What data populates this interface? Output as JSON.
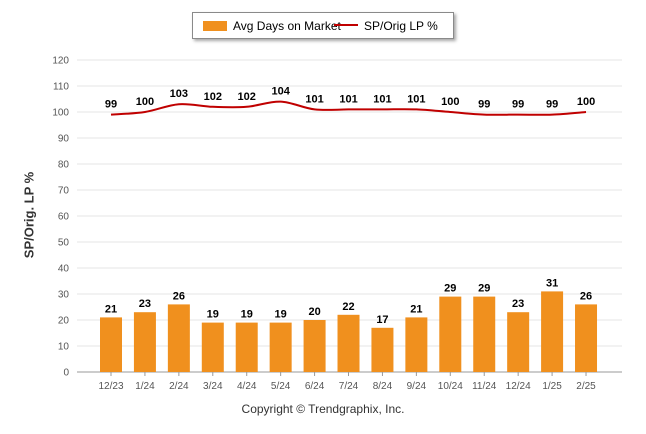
{
  "legend": {
    "bar_label": "Avg Days on Market",
    "line_label": "SP/Orig LP %"
  },
  "copyright": "Copyright © Trendgraphix, Inc.",
  "colors": {
    "bar": "#f0901e",
    "line": "#c00000",
    "grid": "#e6e6e6",
    "axis": "#999999"
  },
  "chart_data": {
    "type": "bar",
    "categories": [
      "12/23",
      "1/24",
      "2/24",
      "3/24",
      "4/24",
      "5/24",
      "6/24",
      "7/24",
      "8/24",
      "9/24",
      "10/24",
      "11/24",
      "12/24",
      "1/25",
      "2/25"
    ],
    "series": [
      {
        "name": "Avg Days on Market",
        "type": "bar",
        "values": [
          21,
          23,
          26,
          19,
          19,
          19,
          20,
          22,
          17,
          21,
          29,
          29,
          23,
          31,
          26
        ]
      },
      {
        "name": "SP/Orig LP %",
        "type": "line",
        "values": [
          99,
          100,
          103,
          102,
          102,
          104,
          101,
          101,
          101,
          101,
          100,
          99,
          99,
          99,
          100
        ]
      }
    ],
    "ylabel": "SP/Orig. LP %",
    "ylim": [
      0,
      120
    ],
    "yticks": [
      0,
      10,
      20,
      30,
      40,
      50,
      60,
      70,
      80,
      90,
      100,
      110,
      120
    ],
    "grid": true,
    "legend_position": "top-center"
  }
}
